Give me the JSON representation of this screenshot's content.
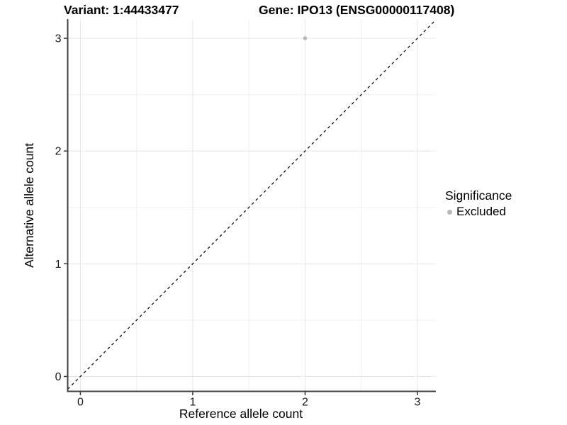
{
  "chart_data": {
    "type": "scatter",
    "title_left": "Variant: 1:44433477",
    "title_right": "Gene: IPO13 (ENSG00000117408)",
    "xlabel": "Reference allele count",
    "ylabel": "Alternative allele count",
    "xlim": [
      -0.113,
      3.164
    ],
    "ylim": [
      -0.132,
      3.17
    ],
    "x_ticks": [
      0,
      1,
      2,
      3
    ],
    "y_ticks": [
      0,
      1,
      2,
      3
    ],
    "minor_ticks": [
      0.5,
      1.5,
      2.5
    ],
    "grid": true,
    "points": [
      {
        "x": 2,
        "y": 3,
        "series": "Excluded"
      }
    ],
    "reference_line": {
      "slope": 1,
      "intercept": 0,
      "style": "dashed"
    },
    "legend": {
      "position": "right",
      "title": "Significance",
      "entries": [
        {
          "label": "Excluded",
          "color": "#b8b8b8"
        }
      ]
    },
    "colors": {
      "point": "#b8b8b8",
      "grid_major": "#e7e7e7",
      "grid_minor": "#f1f1f1",
      "axis": "#404040",
      "ref_line": "#000000",
      "background": "#ffffff"
    }
  }
}
